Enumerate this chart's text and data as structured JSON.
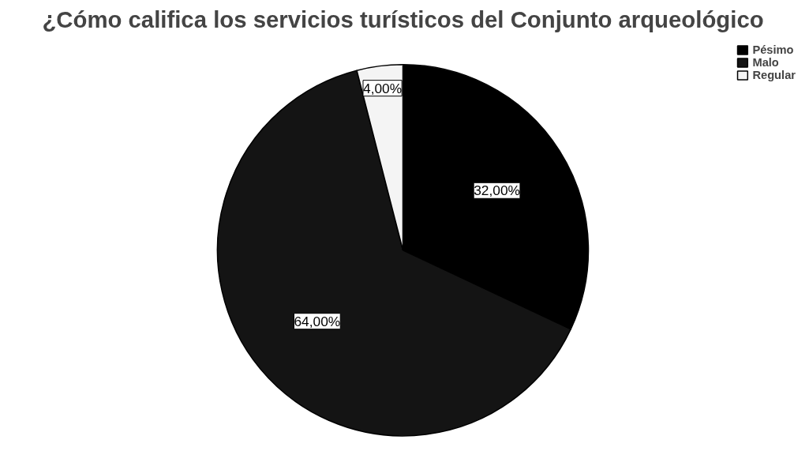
{
  "chart_data": {
    "type": "pie",
    "title": "¿Cómo califica los servicios turísticos del Conjunto arqueológico",
    "categories": [
      "Pésimo",
      "Malo",
      "Regular"
    ],
    "values": [
      32,
      64,
      4
    ],
    "value_labels": [
      "32,00%",
      "64,00%",
      "4,00%"
    ],
    "colors": [
      "#000000",
      "#141414",
      "#f4f4f4"
    ],
    "legend": "top right"
  }
}
